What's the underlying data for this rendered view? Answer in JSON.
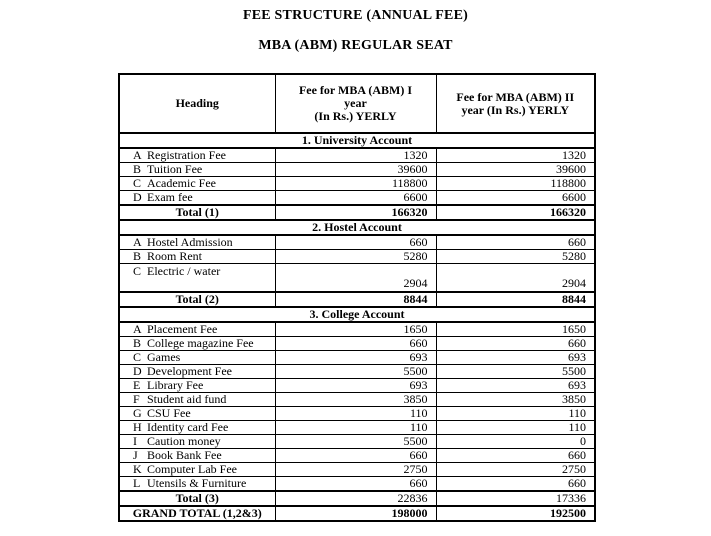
{
  "document": {
    "title": "FEE STRUCTURE (ANNUAL FEE)",
    "subtitle": "MBA (ABM) REGULAR SEAT"
  },
  "colors": {
    "text": "#000000",
    "border": "#000000",
    "background": "#ffffff"
  },
  "table": {
    "header": {
      "heading": "Heading",
      "fee_year1": "Fee for MBA (ABM) I\nyear\n(In Rs.) YERLY",
      "fee_year2": "Fee for MBA (ABM) II\nyear (In Rs.) YERLY"
    },
    "rows": [
      {
        "type": "section",
        "label": "1. University Account"
      },
      {
        "type": "item",
        "code": "A",
        "label": "Registration Fee",
        "fee1": "1320",
        "fee2": "1320"
      },
      {
        "type": "item",
        "code": "B",
        "label": "Tuition Fee",
        "fee1": "39600",
        "fee2": "39600"
      },
      {
        "type": "item",
        "code": "C",
        "label": "Academic Fee",
        "fee1": "118800",
        "fee2": "118800"
      },
      {
        "type": "item",
        "code": "D",
        "label": "Exam fee",
        "fee1": "6600",
        "fee2": "6600"
      },
      {
        "type": "total",
        "label": "Total (1)",
        "fee1": "166320",
        "fee2": "166320",
        "boldValues": true
      },
      {
        "type": "section",
        "label": "2. Hostel Account"
      },
      {
        "type": "item",
        "code": "A",
        "label": "Hostel Admission",
        "fee1": "660",
        "fee2": "660"
      },
      {
        "type": "item",
        "code": "B",
        "label": "Room Rent",
        "fee1": "5280",
        "fee2": "5280"
      },
      {
        "type": "item",
        "code": "C",
        "label": "Electric / water",
        "fee1": "2904",
        "fee2": "2904",
        "tall": true
      },
      {
        "type": "total",
        "label": "Total (2)",
        "fee1": "8844",
        "fee2": "8844",
        "boldValues": true
      },
      {
        "type": "section",
        "label": "3. College Account"
      },
      {
        "type": "item",
        "code": "A",
        "label": "Placement Fee",
        "fee1": "1650",
        "fee2": "1650"
      },
      {
        "type": "item",
        "code": "B",
        "label": "College magazine Fee",
        "fee1": "660",
        "fee2": "660"
      },
      {
        "type": "item",
        "code": "C",
        "label": "Games",
        "fee1": "693",
        "fee2": "693"
      },
      {
        "type": "item",
        "code": "D",
        "label": "Development Fee",
        "fee1": "5500",
        "fee2": "5500"
      },
      {
        "type": "item",
        "code": "E",
        "label": "Library Fee",
        "fee1": "693",
        "fee2": "693"
      },
      {
        "type": "item",
        "code": "F",
        "label": "Student aid fund",
        "fee1": "3850",
        "fee2": "3850"
      },
      {
        "type": "item",
        "code": "G",
        "label": "CSU Fee",
        "fee1": "110",
        "fee2": "110"
      },
      {
        "type": "item",
        "code": "H",
        "label": "Identity card Fee",
        "fee1": "110",
        "fee2": "110"
      },
      {
        "type": "item",
        "code": "I",
        "label": "Caution money",
        "fee1": "5500",
        "fee2": "0"
      },
      {
        "type": "item",
        "code": "J",
        "label": "Book Bank Fee",
        "fee1": "660",
        "fee2": "660"
      },
      {
        "type": "item",
        "code": "K",
        "label": "Computer Lab Fee",
        "fee1": "2750",
        "fee2": "2750"
      },
      {
        "type": "item",
        "code": "L",
        "label": "Utensils & Furniture",
        "fee1": "660",
        "fee2": "660"
      },
      {
        "type": "total",
        "label": "Total (3)",
        "fee1": "22836",
        "fee2": "17336",
        "boldValues": false
      },
      {
        "type": "grand",
        "label": "GRAND TOTAL (1,2&3)",
        "fee1": "198000",
        "fee2": "192500",
        "boldValues": true
      }
    ]
  }
}
